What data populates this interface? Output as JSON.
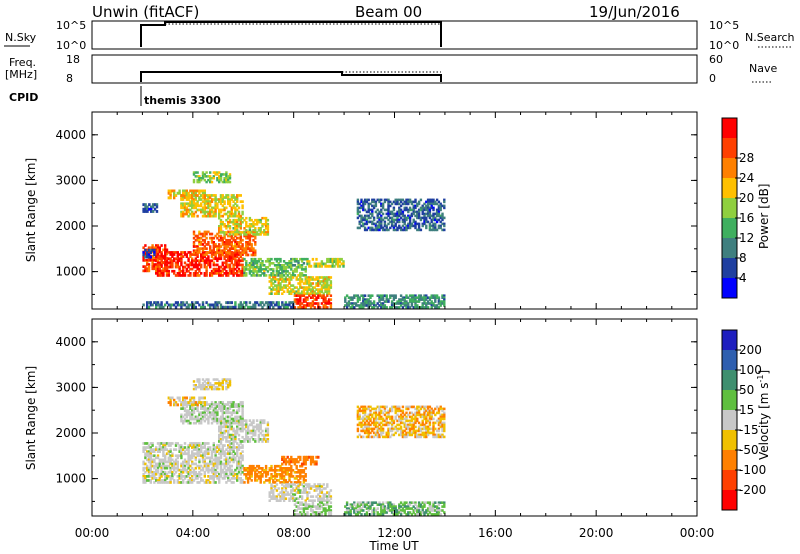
{
  "header": {
    "site": "Unwin (fitACF)",
    "beam": "Beam 00",
    "date": "19/Jun/2016"
  },
  "strips": {
    "nsky_label": "N.Sky",
    "nsky_ticks": [
      "10^5",
      "10^0"
    ],
    "nsearch_label": "N.Search",
    "nsearch_ticks": [
      "10^5",
      "10^0"
    ],
    "freq_label": "Freq.",
    "freq_unit": "[MHz]",
    "freq_ticks": [
      "18",
      "8"
    ],
    "nave_label": "Nave",
    "nave_ticks": [
      "60",
      "0"
    ],
    "cpid_label": "CPID",
    "cpid_value": "themis 3300"
  },
  "colors": {
    "power_scale": [
      "#0000ff",
      "#1f3fa0",
      "#3f7f7f",
      "#3faf5f",
      "#8fcf3f",
      "#ffc000",
      "#ff8000",
      "#ff4000",
      "#ff0000"
    ],
    "velocity_scale": [
      "#1f1fbf",
      "#2f5faf",
      "#3f8f6f",
      "#5fbf3f",
      "#c8c8c8",
      "#f0c000",
      "#ff8000",
      "#ff4000",
      "#ff0000"
    ]
  },
  "chart_data": [
    {
      "type": "heatmap",
      "panel": "power",
      "xlabel": "",
      "ylabel": "Slant Range [km]",
      "xlim": [
        "00:00",
        "24:00"
      ],
      "ylim": [
        180,
        4500
      ],
      "y_ticks": [
        "1000",
        "2000",
        "3000",
        "4000"
      ],
      "colorbar": {
        "label": "Power [dB]",
        "ticks": [
          "4",
          "8",
          "12",
          "16",
          "20",
          "24",
          "28"
        ],
        "range": [
          0,
          32
        ]
      },
      "regions": [
        {
          "t0": 2.0,
          "t1": 3.0,
          "r0": 1000,
          "r1": 1600,
          "value": 27
        },
        {
          "t0": 2.5,
          "t1": 6.0,
          "r0": 900,
          "r1": 1450,
          "value": 28
        },
        {
          "t0": 4.0,
          "t1": 6.5,
          "r0": 1350,
          "r1": 1900,
          "value": 25
        },
        {
          "t0": 5.0,
          "t1": 7.0,
          "r0": 1800,
          "r1": 2200,
          "value": 18
        },
        {
          "t0": 3.5,
          "t1": 6.0,
          "r0": 2200,
          "r1": 2700,
          "value": 19
        },
        {
          "t0": 2.0,
          "t1": 2.6,
          "r0": 2300,
          "r1": 2500,
          "value": 6
        },
        {
          "t0": 3.0,
          "t1": 4.5,
          "r0": 2600,
          "r1": 2800,
          "value": 20
        },
        {
          "t0": 4.0,
          "t1": 5.5,
          "r0": 2950,
          "r1": 3200,
          "value": 15
        },
        {
          "t0": 6.0,
          "t1": 8.5,
          "r0": 900,
          "r1": 1300,
          "value": 14
        },
        {
          "t0": 7.0,
          "t1": 9.5,
          "r0": 500,
          "r1": 900,
          "value": 18
        },
        {
          "t0": 8.0,
          "t1": 9.5,
          "r0": 200,
          "r1": 500,
          "value": 27
        },
        {
          "t0": 8.5,
          "t1": 10.0,
          "r0": 1100,
          "r1": 1300,
          "value": 17
        },
        {
          "t0": 10.0,
          "t1": 14.0,
          "r0": 200,
          "r1": 500,
          "value": 10
        },
        {
          "t0": 10.5,
          "t1": 14.0,
          "r0": 1900,
          "r1": 2600,
          "value": 7
        },
        {
          "t0": 2.0,
          "t1": 8.0,
          "r0": 200,
          "r1": 350,
          "value": 8
        },
        {
          "t0": 2.0,
          "t1": 2.5,
          "r0": 1300,
          "r1": 1500,
          "value": 5
        }
      ]
    },
    {
      "type": "heatmap",
      "panel": "velocity",
      "xlabel": "Time UT",
      "ylabel": "Slant Range [km]",
      "xlim": [
        "00:00",
        "24:00"
      ],
      "ylim": [
        180,
        4500
      ],
      "x_ticks": [
        "00:00",
        "04:00",
        "08:00",
        "12:00",
        "16:00",
        "20:00",
        "00:00"
      ],
      "y_ticks": [
        "1000",
        "2000",
        "3000",
        "4000"
      ],
      "colorbar": {
        "label": "Velocity [m s^-1]",
        "ticks": [
          "200",
          "100",
          "50",
          "15",
          "-15",
          "-50",
          "-100",
          "-200"
        ],
        "range": [
          -250,
          250
        ]
      },
      "regions": [
        {
          "t0": 2.0,
          "t1": 6.0,
          "r0": 900,
          "r1": 1800,
          "value": 0
        },
        {
          "t0": 5.0,
          "t1": 7.0,
          "r0": 1800,
          "r1": 2300,
          "value": 0
        },
        {
          "t0": 3.5,
          "t1": 6.0,
          "r0": 2200,
          "r1": 2700,
          "value": 5
        },
        {
          "t0": 3.0,
          "t1": 4.5,
          "r0": 2600,
          "r1": 2800,
          "value": -20
        },
        {
          "t0": 4.0,
          "t1": 5.5,
          "r0": 2950,
          "r1": 3200,
          "value": -10
        },
        {
          "t0": 6.0,
          "t1": 8.5,
          "r0": 900,
          "r1": 1300,
          "value": -45
        },
        {
          "t0": 7.0,
          "t1": 9.5,
          "r0": 500,
          "r1": 900,
          "value": 0
        },
        {
          "t0": 8.0,
          "t1": 9.5,
          "r0": 200,
          "r1": 500,
          "value": 10
        },
        {
          "t0": 10.0,
          "t1": 14.0,
          "r0": 200,
          "r1": 500,
          "value": 25
        },
        {
          "t0": 10.5,
          "t1": 14.0,
          "r0": 1900,
          "r1": 2600,
          "value": -25
        },
        {
          "t0": 7.5,
          "t1": 9.0,
          "r0": 1300,
          "r1": 1500,
          "value": -60
        }
      ]
    }
  ],
  "panels_units": {
    "power_label": "Power",
    "power_unit": "[dB]",
    "velocity_label": "Velocity",
    "velocity_unit_open": "[m s",
    "velocity_unit_exp": "-1",
    "velocity_unit_close": "]"
  }
}
